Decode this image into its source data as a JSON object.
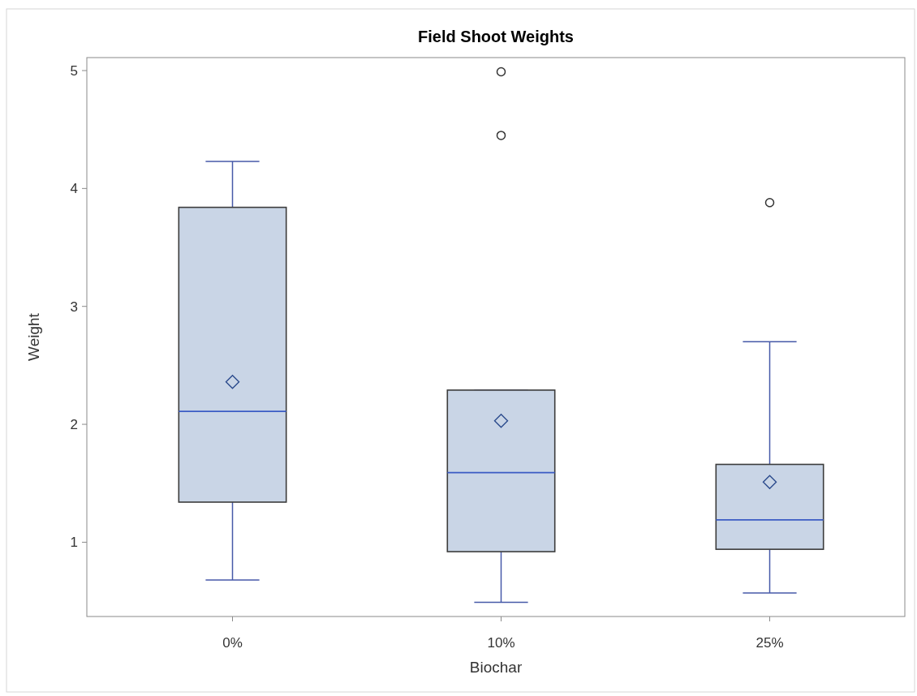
{
  "chart_data": {
    "type": "box",
    "title": "Field Shoot Weights",
    "xlabel": "Biochar",
    "ylabel": "Weight",
    "categories": [
      "0%",
      "10%",
      "25%"
    ],
    "ylim": [
      0.37,
      5.11
    ],
    "yticks": [
      1,
      2,
      3,
      4,
      5
    ],
    "series": [
      {
        "color": "#c9d5e6",
        "boxes": [
          {
            "low": 0.68,
            "q1": 1.34,
            "median": 2.11,
            "q3": 3.84,
            "high": 4.23,
            "mean": 2.36
          },
          {
            "low": 0.49,
            "q1": 0.92,
            "median": 1.59,
            "q3": 2.29,
            "high": 2.29,
            "mean": 2.03,
            "outliers": [
              4.45,
              4.99
            ]
          },
          {
            "low": 0.57,
            "q1": 0.94,
            "median": 1.19,
            "q3": 1.66,
            "high": 2.7,
            "mean": 1.51,
            "outliers": [
              3.88
            ]
          }
        ]
      }
    ]
  }
}
